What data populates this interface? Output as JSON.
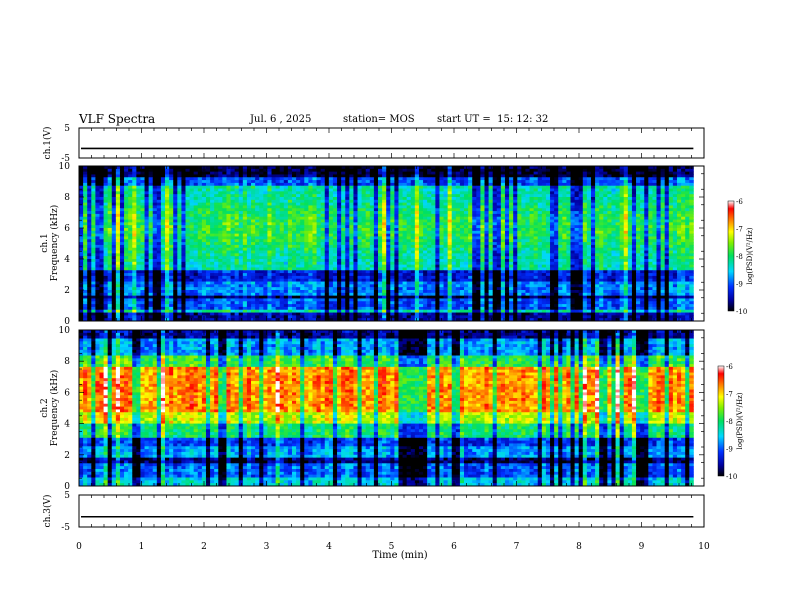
{
  "header": {
    "title": "VLF Spectra",
    "date": "Jul. 6 , 2025",
    "station": "station= MOS",
    "start_ut": "start UT =  15: 12: 32"
  },
  "chart_data": [
    {
      "type": "line",
      "name": "ch1-waveform",
      "ylabel": "ch.1(V)",
      "yticks": [
        "5",
        "-5"
      ],
      "ylim": [
        -5,
        5
      ],
      "xlim": [
        0,
        10
      ],
      "level": -1.8,
      "data_end_min": 9.83
    },
    {
      "type": "heatmap",
      "name": "ch1-spectrogram",
      "ylabel_top": "ch.1",
      "ylabel": "Frequency (kHz)",
      "yticks": [
        "0",
        "2",
        "4",
        "6",
        "8",
        "10"
      ],
      "ylim": [
        0,
        10
      ],
      "xlim": [
        0,
        10
      ],
      "data_end_min": 9.83,
      "colorbar": {
        "label": "log(PSD)(V²/Hz)",
        "ticks": [
          "-6",
          "-7",
          "-8",
          "-9",
          "-10"
        ],
        "range": [
          -10,
          -6
        ]
      }
    },
    {
      "type": "heatmap",
      "name": "ch2-spectrogram",
      "ylabel_top": "ch.2",
      "ylabel": "Frequency (kHz)",
      "yticks": [
        "0",
        "2",
        "4",
        "6",
        "8",
        "10"
      ],
      "ylim": [
        0,
        10
      ],
      "xlim": [
        0,
        10
      ],
      "data_end_min": 9.83,
      "colorbar": {
        "label": "log(PSD)(V²/Hz)",
        "ticks": [
          "-6",
          "-7",
          "-8",
          "-9",
          "-10"
        ],
        "range": [
          -10,
          -6
        ]
      }
    },
    {
      "type": "line",
      "name": "ch3-waveform",
      "ylabel": "ch.3(V)",
      "yticks": [
        "5",
        "-5"
      ],
      "ylim": [
        -5,
        5
      ],
      "xlim": [
        0,
        10
      ],
      "level": -1.8,
      "data_end_min": 9.83
    }
  ],
  "xaxis": {
    "label": "Time (min)",
    "ticks": [
      "0",
      "1",
      "2",
      "3",
      "4",
      "5",
      "6",
      "7",
      "8",
      "9",
      "10"
    ]
  }
}
